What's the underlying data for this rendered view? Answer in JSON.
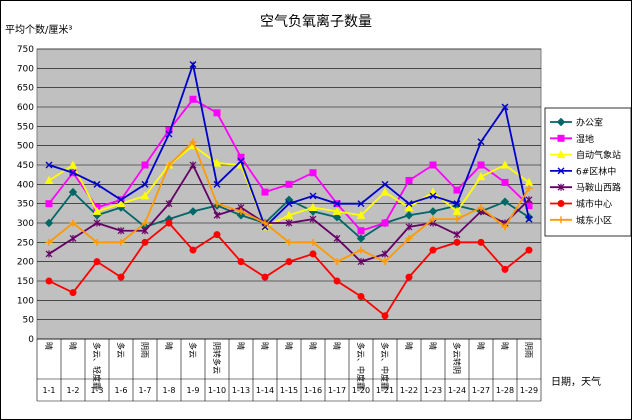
{
  "chart_data": {
    "type": "line",
    "title": "空气负氧离子数量",
    "ylabel": "平均个数/厘米³",
    "xlabel": "日期，天气",
    "ylim": [
      0,
      750
    ],
    "yticks": [
      0,
      50,
      100,
      150,
      200,
      250,
      300,
      350,
      400,
      450,
      500,
      550,
      600,
      650,
      700,
      750
    ],
    "grid": true,
    "legend_position": "right",
    "categories": [
      "1-1",
      "1-2",
      "1-3",
      "1-6",
      "1-7",
      "1-8",
      "1-9",
      "1-10",
      "1-13",
      "1-14",
      "1-15",
      "1-16",
      "1-17",
      "1-20",
      "1-21",
      "1-22",
      "1-23",
      "1-24",
      "1-27",
      "1-28",
      "1-29"
    ],
    "weather": [
      "晴",
      "晴",
      "多云、轻度霾",
      "多云",
      "阴雨",
      "晴",
      "多云",
      "阴转多云",
      "晴",
      "晴",
      "晴",
      "晴",
      "晴",
      "多云、中度霾",
      "多云、中度霾",
      "晴",
      "晴",
      "多云转阴",
      "晴",
      "晴",
      "阴雨"
    ],
    "series": [
      {
        "name": "办公室",
        "color": "#006666",
        "marker": "diamond",
        "values": [
          300,
          380,
          320,
          340,
          290,
          310,
          330,
          345,
          320,
          300,
          360,
          330,
          315,
          260,
          300,
          320,
          330,
          345,
          330,
          355,
          315
        ]
      },
      {
        "name": "湿地",
        "color": "#ff00ff",
        "marker": "square",
        "values": [
          350,
          430,
          340,
          360,
          450,
          540,
          620,
          585,
          470,
          380,
          400,
          430,
          350,
          280,
          300,
          410,
          450,
          385,
          450,
          405,
          345
        ]
      },
      {
        "name": "自动气象站",
        "color": "#ffff00",
        "marker": "triangle",
        "values": [
          410,
          450,
          330,
          350,
          370,
          450,
          500,
          455,
          450,
          290,
          320,
          340,
          330,
          320,
          380,
          340,
          380,
          330,
          420,
          450,
          405
        ]
      },
      {
        "name": "6#区林中",
        "color": "#0000cc",
        "marker": "x",
        "values": [
          450,
          430,
          400,
          360,
          400,
          530,
          710,
          400,
          460,
          290,
          350,
          370,
          350,
          350,
          400,
          350,
          370,
          350,
          510,
          600,
          310
        ]
      },
      {
        "name": "马鞍山西路",
        "color": "#660066",
        "marker": "star",
        "values": [
          220,
          260,
          300,
          280,
          280,
          350,
          450,
          320,
          340,
          300,
          300,
          310,
          260,
          200,
          220,
          290,
          300,
          270,
          330,
          300,
          360
        ]
      },
      {
        "name": "城市中心",
        "color": "#ff0000",
        "marker": "circle",
        "values": [
          150,
          120,
          200,
          160,
          250,
          300,
          230,
          270,
          200,
          160,
          200,
          220,
          150,
          110,
          60,
          160,
          230,
          250,
          250,
          180,
          230
        ]
      },
      {
        "name": "城东小区",
        "color": "#ff9900",
        "marker": "plus",
        "values": [
          250,
          300,
          250,
          250,
          300,
          450,
          510,
          350,
          330,
          300,
          250,
          250,
          200,
          230,
          200,
          260,
          310,
          310,
          340,
          290,
          390
        ]
      }
    ]
  }
}
